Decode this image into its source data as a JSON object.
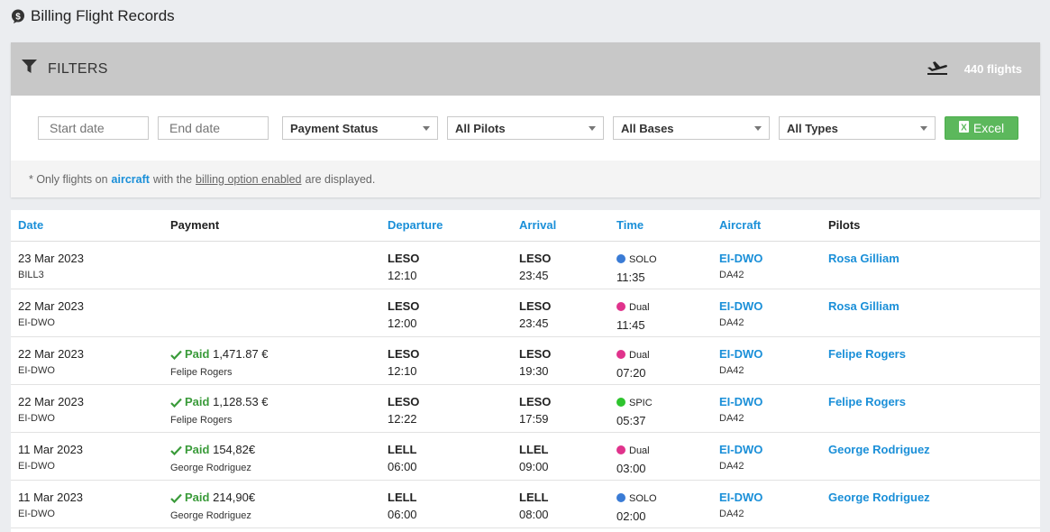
{
  "page": {
    "title": "Billing Flight Records"
  },
  "filters": {
    "heading": "FILTERS",
    "flight_count": "440 flights",
    "start_date_placeholder": "Start date",
    "end_date_placeholder": "End date",
    "payment_status": "Payment Status",
    "pilots": "All Pilots",
    "bases": "All Bases",
    "types": "All Types",
    "excel_label": "Excel",
    "note": {
      "prefix": "* Only flights on",
      "aircraft": "aircraft",
      "middle": "with the",
      "billing": "billing option enabled",
      "suffix": "are displayed."
    }
  },
  "colors": {
    "accent": "#1a8fd8",
    "paid": "#3a9b3a",
    "solo": "#3a7bd5",
    "dual": "#e0338c",
    "spic": "#2ec42e",
    "excel": "#5cb85c"
  },
  "table": {
    "headers": {
      "date": "Date",
      "payment": "Payment",
      "departure": "Departure",
      "arrival": "Arrival",
      "time": "Time",
      "aircraft": "Aircraft",
      "pilots": "Pilots"
    },
    "rows": [
      {
        "date": "23 Mar 2023",
        "sub": "BILL3",
        "paid": "",
        "amount": "",
        "payer": "",
        "dep": "LESO",
        "dep_time": "12:10",
        "arr": "LESO",
        "arr_time": "23:45",
        "type": "SOLO",
        "type_color": "#3a7bd5",
        "duration": "11:35",
        "aircraft": "EI-DWO",
        "model": "DA42",
        "pilot": "Rosa Gilliam"
      },
      {
        "date": "22 Mar 2023",
        "sub": "EI-DWO",
        "paid": "",
        "amount": "",
        "payer": "",
        "dep": "LESO",
        "dep_time": "12:00",
        "arr": "LESO",
        "arr_time": "23:45",
        "type": "Dual",
        "type_color": "#e0338c",
        "duration": "11:45",
        "aircraft": "EI-DWO",
        "model": "DA42",
        "pilot": "Rosa Gilliam"
      },
      {
        "date": "22 Mar 2023",
        "sub": "EI-DWO",
        "paid": "Paid",
        "amount": "1,471.87 €",
        "payer": "Felipe Rogers",
        "dep": "LESO",
        "dep_time": "12:10",
        "arr": "LESO",
        "arr_time": "19:30",
        "type": "Dual",
        "type_color": "#e0338c",
        "duration": "07:20",
        "aircraft": "EI-DWO",
        "model": "DA42",
        "pilot": "Felipe Rogers"
      },
      {
        "date": "22 Mar 2023",
        "sub": "EI-DWO",
        "paid": "Paid",
        "amount": "1,128.53 €",
        "payer": "Felipe Rogers",
        "dep": "LESO",
        "dep_time": "12:22",
        "arr": "LESO",
        "arr_time": "17:59",
        "type": "SPIC",
        "type_color": "#2ec42e",
        "duration": "05:37",
        "aircraft": "EI-DWO",
        "model": "DA42",
        "pilot": "Felipe Rogers"
      },
      {
        "date": "11 Mar 2023",
        "sub": "EI-DWO",
        "paid": "Paid",
        "amount": "154,82€",
        "payer": "George Rodriguez",
        "dep": "LELL",
        "dep_time": "06:00",
        "arr": "LLEL",
        "arr_time": "09:00",
        "type": "Dual",
        "type_color": "#e0338c",
        "duration": "03:00",
        "aircraft": "EI-DWO",
        "model": "DA42",
        "pilot": "George Rodriguez"
      },
      {
        "date": "11 Mar 2023",
        "sub": "EI-DWO",
        "paid": "Paid",
        "amount": "214,90€",
        "payer": "George Rodriguez",
        "dep": "LELL",
        "dep_time": "06:00",
        "arr": "LELL",
        "arr_time": "08:00",
        "type": "SOLO",
        "type_color": "#3a7bd5",
        "duration": "02:00",
        "aircraft": "EI-DWO",
        "model": "DA42",
        "pilot": "George Rodriguez"
      }
    ]
  }
}
